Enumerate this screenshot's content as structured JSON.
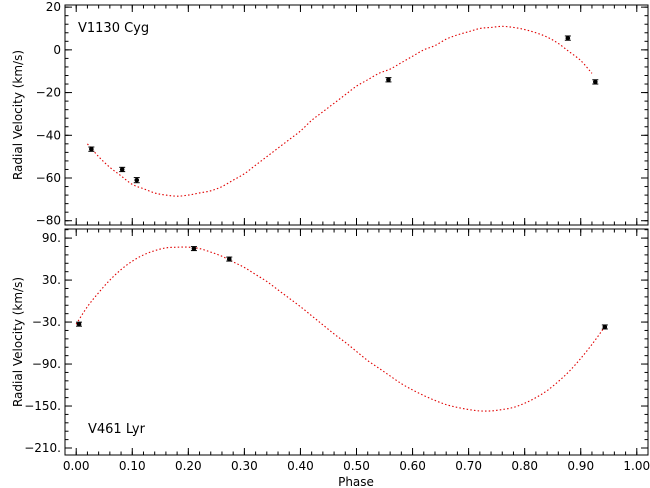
{
  "chart_data": [
    {
      "type": "scatter",
      "title": "V1130 Cyg",
      "xlabel": "",
      "ylabel": "Radial Velocity (km/s)",
      "xlim": [
        -0.02,
        1.02
      ],
      "ylim": [
        -82,
        21
      ],
      "yticks": [
        20,
        0,
        -20,
        -40,
        -60,
        -80
      ],
      "ytick_labels": [
        "20",
        "0",
        "−20",
        "−40",
        "−60",
        "−80"
      ],
      "series": [
        {
          "points": [
            {
              "x": 0.027,
              "y": -46.5,
              "err": 1.0
            },
            {
              "x": 0.082,
              "y": -56.0,
              "err": 1.0
            },
            {
              "x": 0.108,
              "y": -61.0,
              "err": 1.2
            },
            {
              "x": 0.557,
              "y": -14.0,
              "err": 1.0
            },
            {
              "x": 0.877,
              "y": 5.5,
              "err": 1.0
            },
            {
              "x": 0.926,
              "y": -15.0,
              "err": 1.0
            }
          ]
        }
      ],
      "fit": {
        "x": [
          0.02,
          0.04,
          0.06,
          0.08,
          0.1,
          0.12,
          0.14,
          0.16,
          0.18,
          0.2,
          0.22,
          0.24,
          0.26,
          0.28,
          0.3,
          0.32,
          0.34,
          0.36,
          0.38,
          0.4,
          0.42,
          0.44,
          0.46,
          0.48,
          0.5,
          0.52,
          0.54,
          0.56,
          0.58,
          0.6,
          0.62,
          0.64,
          0.66,
          0.68,
          0.7,
          0.72,
          0.74,
          0.76,
          0.78,
          0.8,
          0.82,
          0.84,
          0.86,
          0.88,
          0.9,
          0.92
        ],
        "y": [
          -44,
          -50,
          -55,
          -59,
          -63,
          -65,
          -67,
          -68,
          -68.5,
          -68,
          -67,
          -66,
          -64,
          -61,
          -58,
          -54,
          -50,
          -46,
          -42,
          -38,
          -33,
          -29,
          -25,
          -21,
          -17,
          -14,
          -11,
          -9,
          -6,
          -3,
          0,
          2,
          5,
          7,
          8.5,
          10,
          10.5,
          11,
          10.5,
          9.5,
          8,
          6,
          3,
          -1,
          -5,
          -11
        ]
      }
    },
    {
      "type": "scatter",
      "title": "V461 Lyr",
      "xlabel": "Phase",
      "ylabel": "Radial Velocity (km/s)",
      "xlim": [
        -0.02,
        1.02
      ],
      "ylim": [
        -220,
        103
      ],
      "yticks": [
        90,
        30,
        -30,
        -90,
        -150,
        -210
      ],
      "ytick_labels": [
        "90.",
        "30.",
        "−30.",
        "−90.",
        "−150.",
        "−210."
      ],
      "xticks": [
        0.0,
        0.1,
        0.2,
        0.3,
        0.4,
        0.5,
        0.6,
        0.7,
        0.8,
        0.9,
        1.0
      ],
      "xtick_labels": [
        "0.00",
        "0.10",
        "0.20",
        "0.30",
        "0.40",
        "0.50",
        "0.60",
        "0.70",
        "0.80",
        "0.90",
        "1.00"
      ],
      "series": [
        {
          "points": [
            {
              "x": 0.005,
              "y": -33.0
            },
            {
              "x": 0.21,
              "y": 75.0
            },
            {
              "x": 0.273,
              "y": 60.0
            },
            {
              "x": 0.943,
              "y": -37.0
            }
          ]
        }
      ],
      "fit": {
        "x": [
          0.0,
          0.02,
          0.04,
          0.06,
          0.08,
          0.1,
          0.12,
          0.14,
          0.16,
          0.18,
          0.2,
          0.22,
          0.24,
          0.26,
          0.28,
          0.3,
          0.32,
          0.34,
          0.36,
          0.38,
          0.4,
          0.42,
          0.44,
          0.46,
          0.48,
          0.5,
          0.52,
          0.54,
          0.56,
          0.58,
          0.6,
          0.62,
          0.64,
          0.66,
          0.68,
          0.7,
          0.72,
          0.74,
          0.76,
          0.78,
          0.8,
          0.82,
          0.84,
          0.86,
          0.88,
          0.9,
          0.92,
          0.94
        ],
        "y": [
          -33,
          -8,
          12,
          30,
          45,
          57,
          66,
          72,
          76,
          77,
          77,
          75,
          70,
          64,
          56,
          48,
          38,
          28,
          16,
          4,
          -8,
          -21,
          -34,
          -47,
          -59,
          -72,
          -85,
          -96,
          -107,
          -118,
          -127,
          -135,
          -142,
          -148,
          -152,
          -155,
          -157,
          -157,
          -155,
          -152,
          -146,
          -138,
          -128,
          -115,
          -100,
          -82,
          -62,
          -40
        ]
      }
    }
  ]
}
